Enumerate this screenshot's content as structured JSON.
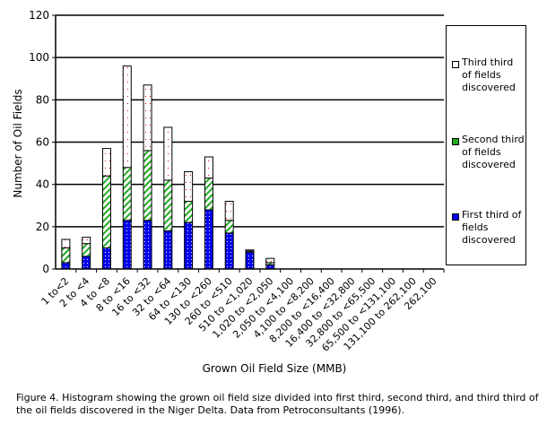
{
  "chart_data": {
    "type": "bar",
    "stacked": true,
    "xlabel": "Grown Oil Field Size (MMB)",
    "ylabel": "Number of Oil Fields",
    "ylim": [
      0,
      120
    ],
    "yticks": [
      0,
      20,
      40,
      60,
      80,
      100,
      120
    ],
    "grid": true,
    "legend_position": "right",
    "categories": [
      "1 to<2",
      "2 to <4",
      "4 to <8",
      "8 to <16",
      "16 to <32",
      "32 to <64",
      "64 to <130",
      "130 to <260",
      "260 to <510",
      "510 to <1,020",
      "1,020 to <2,050",
      "2,050 to <4,100",
      "4,100 to <8,200",
      "8,200 to <16,400",
      "16,400 to <32,800",
      "32,800 to <65,500",
      "65,500 to <131,100",
      "131,100 to 262,100",
      "262,100"
    ],
    "series": [
      {
        "name": "First third of fields discovered",
        "color": "#0000ee",
        "values": [
          3,
          6,
          10,
          23,
          23,
          18,
          22,
          28,
          17,
          8,
          2,
          0,
          0,
          0,
          0,
          0,
          0,
          0,
          0
        ]
      },
      {
        "name": "Second third of fields discovered",
        "color": "#22aa22",
        "values": [
          7,
          6,
          34,
          25,
          33,
          24,
          10,
          15,
          6,
          0.5,
          1,
          0,
          0,
          0,
          0,
          0,
          0,
          0,
          0
        ]
      },
      {
        "name": "Third third of fields discovered",
        "color": "#ffffff",
        "values": [
          4,
          3,
          13,
          48,
          31,
          25,
          14,
          10,
          9,
          0.5,
          2,
          0,
          0,
          0,
          0,
          0,
          0,
          0,
          0
        ]
      }
    ],
    "caption": "Figure 4.  Histogram showing the grown oil field size divided into first third, second third, and third third of the oil fields discovered in the Niger Delta.  Data from Petroconsultants (1996)."
  }
}
